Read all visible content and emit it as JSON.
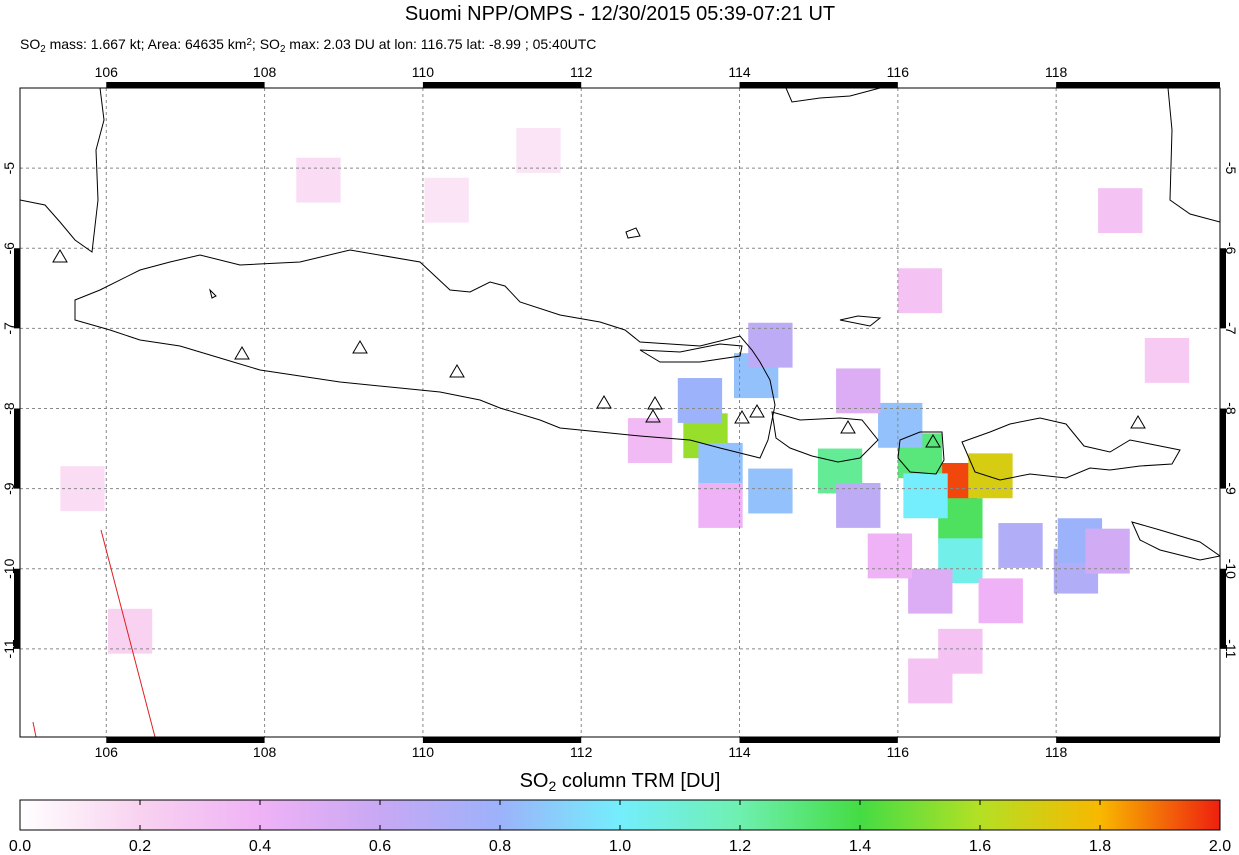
{
  "chart_data": {
    "type": "map",
    "title": "Suomi NPP/OMPS - 12/30/2015 05:39-07:21 UT",
    "subtitle": [
      {
        "text": "SO"
      },
      {
        "sub": "2"
      },
      {
        "text": " mass: 1.667 kt; Area: 64635 km"
      },
      {
        "sup": "2"
      },
      {
        "text": "; SO"
      },
      {
        "sub": "2"
      },
      {
        "text": " max: 2.03 DU at lon: 116.75 lat: -8.99 ; 05:40UTC"
      }
    ],
    "xlim": [
      104.91,
      120.07
    ],
    "ylim": [
      -12.1,
      -4.0
    ],
    "xticks": [
      106,
      108,
      110,
      112,
      114,
      116,
      118
    ],
    "yticks": [
      -5,
      -6,
      -7,
      -8,
      -9,
      -10,
      -11
    ],
    "grid": true,
    "cells": {
      "lon": [
        116.72,
        117.17,
        116.79,
        116.79,
        116.28,
        116.35,
        115.27,
        113.57,
        116.03,
        114.21,
        113.5,
        113.76,
        114.39,
        114.39,
        115.5,
        117.55,
        118.25,
        118.3,
        116.41,
        117.3,
        113.76,
        112.87,
        115.5,
        118.65,
        116.28,
        118.81,
        116.79,
        116.41,
        115.9,
        108.68,
        111.46,
        110.3,
        106.3,
        105.7,
        119.4
      ],
      "lat": [
        -8.96,
        -8.84,
        -9.4,
        -9.9,
        -8.59,
        -9.09,
        -8.78,
        -8.34,
        -8.21,
        -7.59,
        -7.9,
        -8.71,
        -9.03,
        -7.21,
        -9.21,
        -9.71,
        -10.03,
        -9.65,
        -10.28,
        -10.4,
        -9.21,
        -8.4,
        -7.78,
        -9.78,
        -6.53,
        -5.53,
        -11.03,
        -11.4,
        -9.84,
        -5.15,
        -4.78,
        -5.4,
        -10.78,
        -9.0,
        -7.4
      ],
      "value": [
        1.95,
        1.7,
        1.35,
        1.05,
        1.3,
        1.0,
        1.25,
        1.55,
        0.85,
        0.85,
        0.8,
        0.85,
        0.85,
        0.65,
        0.65,
        0.7,
        0.7,
        0.8,
        0.5,
        0.4,
        0.4,
        0.35,
        0.5,
        0.55,
        0.3,
        0.3,
        0.3,
        0.3,
        0.4,
        0.15,
        0.12,
        0.12,
        0.2,
        0.15,
        0.25
      ]
    },
    "colorbar": {
      "label": [
        {
          "text": "SO"
        },
        {
          "sub": "2"
        },
        {
          "text": " column TRM [DU]"
        }
      ],
      "lim": [
        0,
        2
      ],
      "ticks": [
        {
          "value": 0,
          "label": "0.0"
        },
        0.2,
        0.4,
        0.6,
        0.8,
        {
          "value": 1,
          "label": "1.0"
        },
        1.2,
        1.4,
        1.6,
        1.8,
        {
          "value": 2,
          "label": "2.0"
        }
      ],
      "colors": [
        "#ffffff",
        "#f8d2f0",
        "#efb2f6",
        "#c8a8f4",
        "#9cb2fa",
        "#74eefc",
        "#6ef0b0",
        "#44dc44",
        "#b4e024",
        "#f8b800",
        "#ee2010"
      ]
    }
  }
}
